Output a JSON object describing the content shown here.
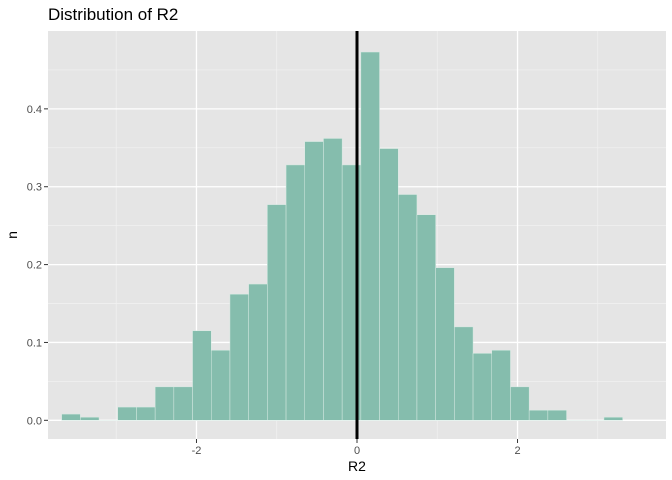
{
  "chart_data": {
    "type": "bar",
    "title": "Distribution of R2",
    "xlabel": "R2",
    "ylabel": "n",
    "xlim": [
      -3.85,
      3.85
    ],
    "ylim": [
      -0.024,
      0.5
    ],
    "x_ticks": [
      -2,
      0,
      2
    ],
    "x_tick_labels": [
      "-2",
      "0",
      "2"
    ],
    "y_ticks": [
      0.0,
      0.1,
      0.2,
      0.3,
      0.4
    ],
    "y_tick_labels": [
      "0.0",
      "0.1",
      "0.2",
      "0.3",
      "0.4"
    ],
    "bin_width": 0.233,
    "bins": [
      {
        "x_start": -3.68,
        "value": 0.008
      },
      {
        "x_start": -3.447,
        "value": 0.004
      },
      {
        "x_start": -3.214,
        "value": 0.0
      },
      {
        "x_start": -2.981,
        "value": 0.017
      },
      {
        "x_start": -2.748,
        "value": 0.017
      },
      {
        "x_start": -2.515,
        "value": 0.043
      },
      {
        "x_start": -2.282,
        "value": 0.043
      },
      {
        "x_start": -2.049,
        "value": 0.115
      },
      {
        "x_start": -1.816,
        "value": 0.09
      },
      {
        "x_start": -1.583,
        "value": 0.162
      },
      {
        "x_start": -1.35,
        "value": 0.175
      },
      {
        "x_start": -1.117,
        "value": 0.277
      },
      {
        "x_start": -0.884,
        "value": 0.328
      },
      {
        "x_start": -0.651,
        "value": 0.358
      },
      {
        "x_start": -0.418,
        "value": 0.362
      },
      {
        "x_start": -0.185,
        "value": 0.328
      },
      {
        "x_start": 0.048,
        "value": 0.473
      },
      {
        "x_start": 0.281,
        "value": 0.349
      },
      {
        "x_start": 0.514,
        "value": 0.29
      },
      {
        "x_start": 0.747,
        "value": 0.264
      },
      {
        "x_start": 0.98,
        "value": 0.196
      },
      {
        "x_start": 1.213,
        "value": 0.12
      },
      {
        "x_start": 1.446,
        "value": 0.086
      },
      {
        "x_start": 1.679,
        "value": 0.09
      },
      {
        "x_start": 1.912,
        "value": 0.043
      },
      {
        "x_start": 2.145,
        "value": 0.013
      },
      {
        "x_start": 2.378,
        "value": 0.013
      },
      {
        "x_start": 2.611,
        "value": 0.0
      },
      {
        "x_start": 2.844,
        "value": 0.0
      },
      {
        "x_start": 3.077,
        "value": 0.004
      }
    ],
    "reference_line_x": 0,
    "grid": true,
    "legend": "none",
    "colors": {
      "bar_fill": "#85bdad",
      "bar_outline": "#d8ebe4",
      "panel_background": "#e5e5e5",
      "grid_major": "#ffffff",
      "grid_minor": "#f2f2f2",
      "reference_line": "#000000"
    }
  }
}
